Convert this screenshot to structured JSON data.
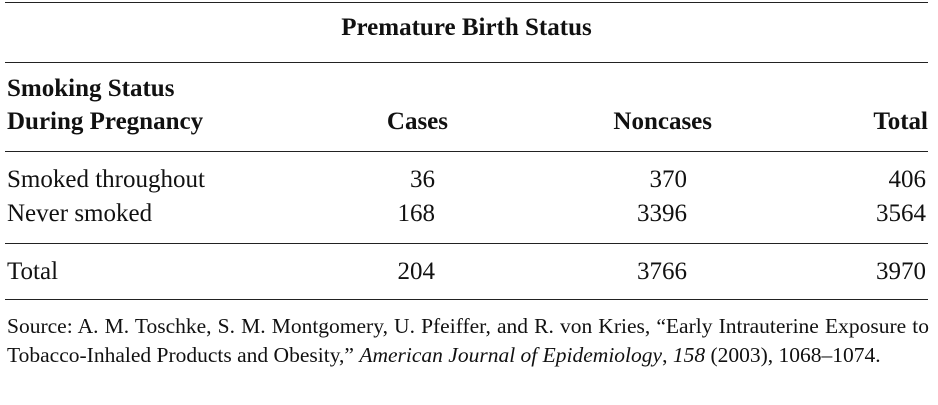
{
  "table": {
    "title": "Premature Birth Status",
    "header": {
      "label_line1": "Smoking Status",
      "label_line2": "During Pregnancy",
      "cases": "Cases",
      "noncases": "Noncases",
      "total": "Total"
    },
    "rows": [
      {
        "label": "Smoked throughout",
        "cases": "36",
        "noncases": "370",
        "total": "406"
      },
      {
        "label": "Never smoked",
        "cases": "168",
        "noncases": "3396",
        "total": "3564"
      }
    ],
    "totals": {
      "label": "Total",
      "cases": "204",
      "noncases": "3766",
      "total": "3970"
    }
  },
  "source": {
    "prefix": "Source: A. M. Toschke, S. M. Montgomery, U. Pfeiffer, and R. von Kries, “Early Intrauterine Exposure to Tobacco-Inhaled Products and Obesity,” ",
    "journal": "American Journal of Epidemiology",
    "sep": ", ",
    "volume": "158",
    "suffix": " (2003), 1068–1074."
  }
}
